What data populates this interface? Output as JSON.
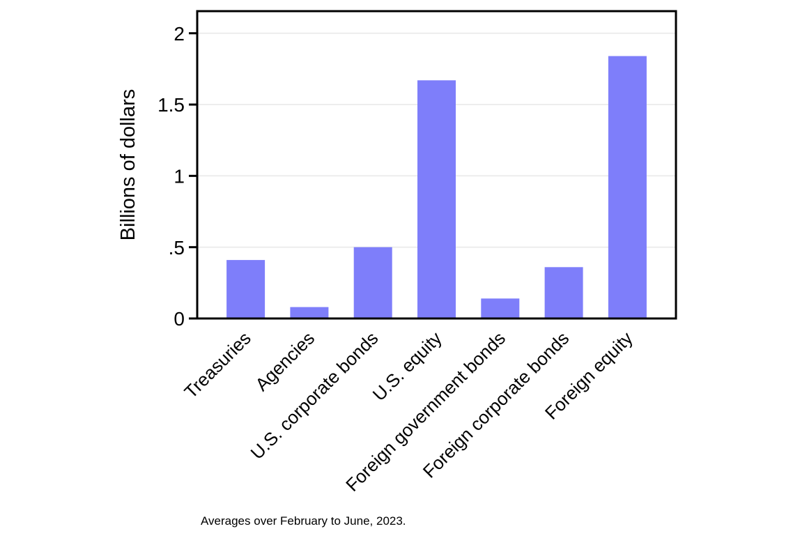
{
  "chart_data": {
    "type": "bar",
    "categories": [
      "Treasuries",
      "Agencies",
      "U.S. corporate bonds",
      "U.S. equity",
      "Foreign government bonds",
      "Foreign corporate bonds",
      "Foreign equity"
    ],
    "values": [
      0.41,
      0.08,
      0.5,
      1.67,
      0.14,
      0.36,
      1.84
    ],
    "title": "",
    "xlabel": "",
    "ylabel": "Billions of dollars",
    "ylim": [
      0,
      2.155
    ],
    "yticks": [
      {
        "value": 0,
        "label": "0"
      },
      {
        "value": 0.5,
        "label": ".5"
      },
      {
        "value": 1,
        "label": "1"
      },
      {
        "value": 1.5,
        "label": "1.5"
      },
      {
        "value": 2,
        "label": "2"
      }
    ],
    "grid": true,
    "legend_position": "none",
    "caption": "Averages over February to June, 2023.",
    "bar_color": "#7e7efa",
    "grid_color": "#e9e9e9",
    "axis_color": "#000000",
    "background_color": "#ffffff"
  }
}
